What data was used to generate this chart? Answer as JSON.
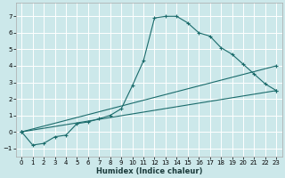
{
  "xlabel": "Humidex (Indice chaleur)",
  "bg_color": "#cce8ea",
  "grid_color": "#ffffff",
  "line_color": "#1a6b6b",
  "xlim": [
    -0.5,
    23.5
  ],
  "ylim": [
    -1.5,
    7.8
  ],
  "xticks": [
    0,
    1,
    2,
    3,
    4,
    5,
    6,
    7,
    8,
    9,
    10,
    11,
    12,
    13,
    14,
    15,
    16,
    17,
    18,
    19,
    20,
    21,
    22,
    23
  ],
  "yticks": [
    -1,
    0,
    1,
    2,
    3,
    4,
    5,
    6,
    7
  ],
  "series1_x": [
    0,
    1,
    2,
    3,
    4,
    5,
    6,
    7,
    8,
    9,
    10,
    11,
    12,
    13,
    14,
    15,
    16,
    17,
    18,
    19,
    20,
    21,
    22,
    23
  ],
  "series1_y": [
    0,
    -0.8,
    -0.7,
    -0.3,
    -0.2,
    0.5,
    0.6,
    0.8,
    1.0,
    1.4,
    2.8,
    4.3,
    6.9,
    7.0,
    7.0,
    6.6,
    6.0,
    5.8,
    5.1,
    4.7,
    4.1,
    3.5,
    2.9,
    2.5
  ],
  "line1_x": [
    0,
    23
  ],
  "line1_y": [
    0,
    2.5
  ],
  "line2_x": [
    0,
    23
  ],
  "line2_y": [
    0,
    4.0
  ]
}
